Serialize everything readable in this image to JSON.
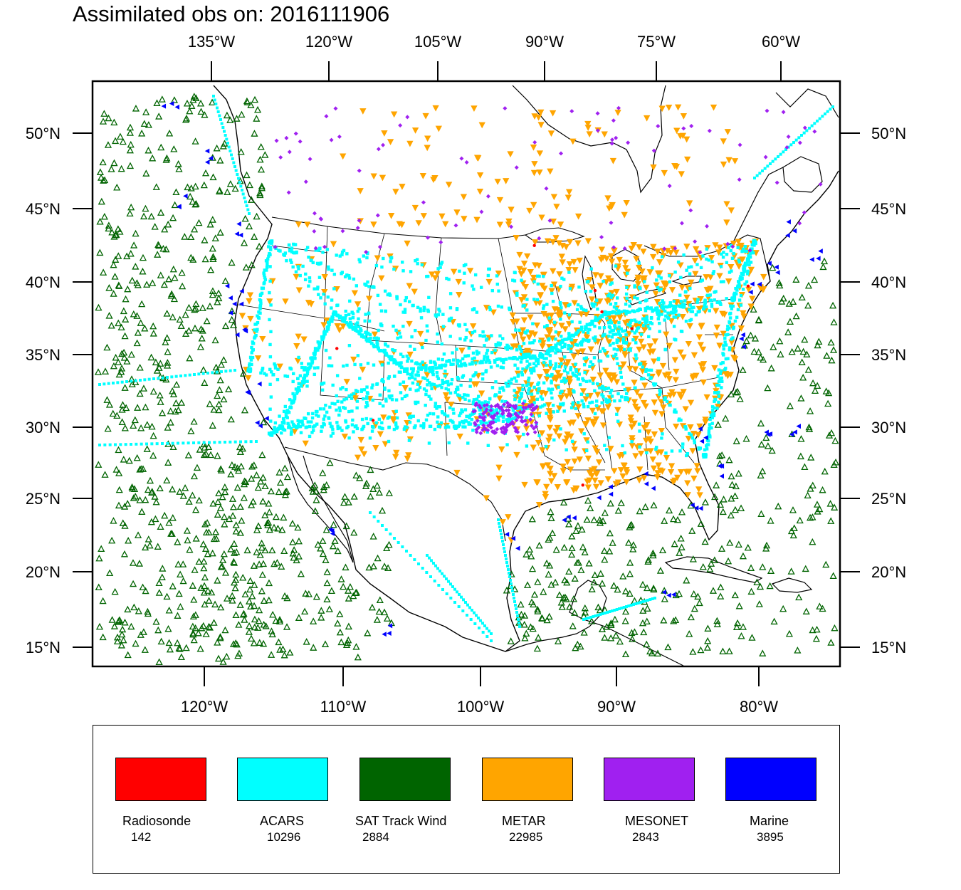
{
  "title": "Assimilated obs on: 2016111906",
  "top_axis_labels": [
    "135°W",
    "120°W",
    "105°W",
    "90°W",
    "75°W",
    "60°W"
  ],
  "bottom_axis_labels": [
    "120°W",
    "110°W",
    "100°W",
    "90°W",
    "80°W"
  ],
  "lat_labels": [
    "50°N",
    "45°N",
    "40°N",
    "35°N",
    "30°N",
    "25°N",
    "20°N",
    "15°N"
  ],
  "legend": [
    {
      "name": "Radiosonde",
      "count": "142",
      "color": "#ff0000"
    },
    {
      "name": "ACARS",
      "count": "10296",
      "color": "#00ffff"
    },
    {
      "name": "SAT Track Wind",
      "count": "2884",
      "color": "#006400"
    },
    {
      "name": "METAR",
      "count": "22985",
      "color": "#ffa500"
    },
    {
      "name": "MESONET",
      "count": "2843",
      "color": "#a020f0"
    },
    {
      "name": "Marine",
      "count": "3895",
      "color": "#0000ff"
    }
  ]
}
